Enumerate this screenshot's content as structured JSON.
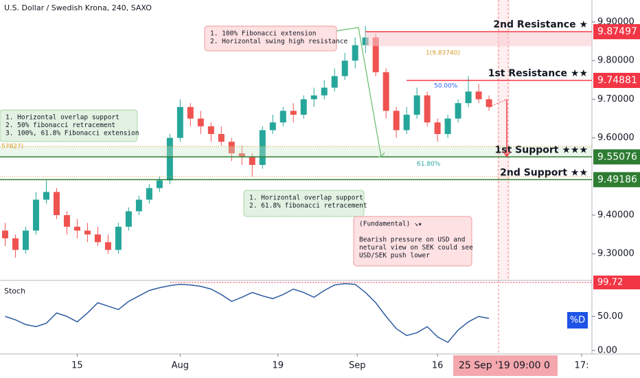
{
  "chart_data": {
    "type": "candlestick",
    "title": "U.S. Dollar / Swedish Krona, 240, SAXO",
    "open": [
      9.36,
      9.34,
      9.31,
      9.36,
      9.44,
      9.46,
      9.4,
      9.37,
      9.36,
      9.35,
      9.33,
      9.31,
      9.37,
      9.41,
      9.44,
      9.47,
      9.49,
      9.6,
      9.68,
      9.65,
      9.63,
      9.61,
      9.59,
      9.56,
      9.55,
      9.53,
      9.62,
      9.64,
      9.67,
      9.66,
      9.7,
      9.71,
      9.73,
      9.76,
      9.8,
      9.84,
      9.86,
      9.77,
      9.67,
      9.62,
      9.66,
      9.71,
      9.64,
      9.61,
      9.65,
      9.69,
      9.72,
      9.7
    ],
    "high": [
      9.38,
      9.35,
      9.37,
      9.46,
      9.49,
      9.47,
      9.41,
      9.39,
      9.38,
      9.37,
      9.35,
      9.38,
      9.42,
      9.45,
      9.48,
      9.5,
      9.61,
      9.7,
      9.69,
      9.67,
      9.64,
      9.63,
      9.6,
      9.58,
      9.56,
      9.63,
      9.66,
      9.68,
      9.69,
      9.71,
      9.73,
      9.75,
      9.78,
      9.82,
      9.86,
      9.89,
      9.87,
      9.78,
      9.68,
      9.68,
      9.73,
      9.72,
      9.65,
      9.66,
      9.7,
      9.76,
      9.74,
      9.71
    ],
    "low": [
      9.32,
      9.29,
      9.3,
      9.35,
      9.43,
      9.39,
      9.35,
      9.34,
      9.33,
      9.32,
      9.3,
      9.3,
      9.36,
      9.4,
      9.43,
      9.46,
      9.48,
      9.59,
      9.63,
      9.61,
      9.59,
      9.58,
      9.54,
      9.53,
      9.5,
      9.52,
      9.61,
      9.63,
      9.64,
      9.65,
      9.68,
      9.7,
      9.72,
      9.75,
      9.78,
      9.82,
      9.76,
      9.65,
      9.6,
      9.61,
      9.65,
      9.63,
      9.59,
      9.6,
      9.64,
      9.68,
      9.69,
      9.67
    ],
    "close": [
      9.34,
      9.31,
      9.36,
      9.44,
      9.46,
      9.4,
      9.37,
      9.36,
      9.35,
      9.33,
      9.31,
      9.37,
      9.41,
      9.44,
      9.47,
      9.49,
      9.6,
      9.68,
      9.65,
      9.63,
      9.61,
      9.59,
      9.56,
      9.55,
      9.53,
      9.62,
      9.64,
      9.67,
      9.66,
      9.7,
      9.71,
      9.73,
      9.76,
      9.8,
      9.84,
      9.86,
      9.77,
      9.67,
      9.62,
      9.66,
      9.71,
      9.64,
      9.61,
      9.65,
      9.69,
      9.72,
      9.7,
      9.68
    ],
    "up_color": "#26a69a",
    "down_color": "#ef5350",
    "xlim": [
      -0.5,
      57
    ],
    "xticks": [
      {
        "value": 7,
        "label": "15"
      },
      {
        "value": 17,
        "label": "Aug"
      },
      {
        "value": 26.5,
        "label": "19"
      },
      {
        "value": 34.2,
        "label": "Sep"
      },
      {
        "value": 42,
        "label": "16"
      },
      {
        "value": 56,
        "label": "17:"
      }
    ],
    "ylim": [
      9.231,
      9.957
    ],
    "yticks": [
      {
        "value": 9.3,
        "label": "9.30000"
      },
      {
        "value": 9.4,
        "label": "9.40000"
      },
      {
        "value": 9.6,
        "label": "9.60000"
      },
      {
        "value": 9.7,
        "label": "9.70000"
      },
      {
        "value": 9.8,
        "label": "9.80000"
      },
      {
        "value": 9.9,
        "label": "9.90000"
      }
    ],
    "levels": [
      {
        "name": "2nd Resistance ★",
        "value": 9.87497,
        "color": "#f23645",
        "from_index": 35
      },
      {
        "name": "1st Resistance ★★",
        "value": 9.74881,
        "color": "#f23645",
        "from_index": 39
      },
      {
        "name": "1st Support ★★★",
        "value": 9.55076,
        "color": "#2e7d32",
        "from_index": -0.5
      },
      {
        "name": "2nd Support ★★",
        "value": 9.49186,
        "color": "#2e7d32",
        "from_index": -0.5
      }
    ],
    "fib_labels": [
      "1(9.83740)",
      "50.00%",
      "61.80%",
      "57827)"
    ],
    "annotations": [
      {
        "kind": "resistance",
        "lines": [
          "1. 100% Fibonacci extension",
          "2. Horizontal swing high resistance"
        ]
      },
      {
        "kind": "support",
        "lines": [
          "1. Horizontal overlap support",
          "2. 50% fibonacci retracement",
          "3. 100%, 61.8% Fibonacci extension"
        ]
      },
      {
        "kind": "support",
        "lines": [
          "1. Horizontal overlap support",
          "2. 61.8% fibonacci retracement"
        ]
      },
      {
        "kind": "resistance",
        "lines": [
          "(Fundamental) ↘★",
          "",
          "Bearish pressure on USD and",
          "netural view on SEK could see",
          "USD/SEK push lower"
        ]
      }
    ],
    "indicator": {
      "name": "Stoch",
      "legend": "%D",
      "color": "#2c5aa0",
      "values": [
        50,
        45,
        38,
        35,
        40,
        55,
        50,
        42,
        55,
        70,
        65,
        60,
        72,
        80,
        88,
        92,
        95,
        97,
        96,
        94,
        90,
        82,
        72,
        78,
        85,
        80,
        76,
        82,
        90,
        85,
        78,
        88,
        96,
        98,
        97,
        85,
        70,
        50,
        32,
        22,
        26,
        35,
        20,
        12,
        30,
        42,
        50,
        47
      ],
      "ylim": [
        -5,
        100.7
      ],
      "yticks": [
        {
          "value": 50,
          "label": "50.00"
        },
        {
          "value": 0,
          "label": "0.00"
        }
      ],
      "marker": 99.72
    },
    "crosshair_label": "25 Sep '19   09:00  0"
  }
}
